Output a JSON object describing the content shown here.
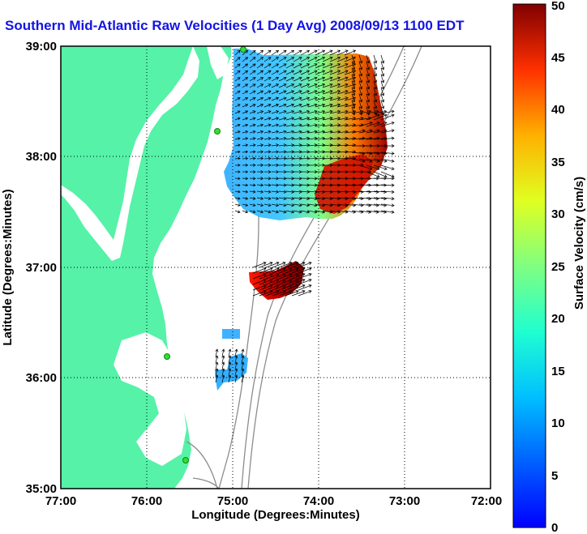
{
  "title": "Southern Mid-Atlantic Raw Velocities (1 Day Avg) 2008/09/13 1100 EDT",
  "map": {
    "xlabel": "Longitude (Degrees:Minutes)",
    "ylabel": "Latitude (Degrees:Minutes)",
    "x_ticks": [
      "77:00",
      "76:00",
      "75:00",
      "74:00",
      "73:00",
      "72:00"
    ],
    "y_ticks": [
      "39:00",
      "38:00",
      "37:00",
      "36:00",
      "35:00"
    ],
    "lon_range": [
      -77,
      -72
    ],
    "lat_range": [
      35,
      39
    ],
    "grid": "dotted",
    "colors": {
      "land": "#55f2a8",
      "ocean": "#ffffff",
      "isobath": "#8c8c8c",
      "station": "#33dd33"
    }
  },
  "colorbar": {
    "label": "Surface Velocity (cm/s)",
    "ticks": [
      "0",
      "5",
      "10",
      "15",
      "20",
      "25",
      "30",
      "35",
      "40",
      "45",
      "50"
    ],
    "range": [
      0,
      50
    ],
    "colormap": "jet"
  }
}
